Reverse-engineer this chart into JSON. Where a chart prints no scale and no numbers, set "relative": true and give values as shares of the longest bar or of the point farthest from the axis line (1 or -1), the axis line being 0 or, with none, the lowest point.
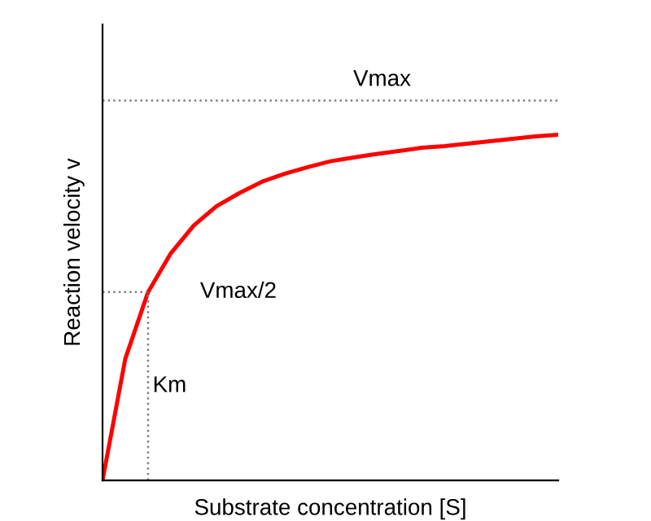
{
  "chart_data": {
    "type": "line",
    "relative": true,
    "xlabel": "Substrate concentration [S]",
    "ylabel": "Reaction velocity v",
    "categories": [
      null,
      null,
      null,
      null,
      null,
      null,
      null,
      null,
      null,
      null,
      null,
      null,
      null,
      null,
      null,
      null,
      null,
      null,
      null,
      null,
      null
    ],
    "series": [
      {
        "color": "#ff0000",
        "line_style": "solid",
        "values": [
          0,
          0.352,
          0.545,
          0.657,
          0.737,
          0.793,
          0.831,
          0.864,
          0.887,
          0.906,
          0.923,
          0.934,
          0.944,
          0.953,
          0.962,
          0.967,
          0.974,
          0.981,
          0.988,
          0.995,
          1.0
        ]
      },
      {
        "color": "#808080",
        "line_style": "dotted",
        "values": [
          0.545,
          0.545,
          0.545,
          null,
          null,
          null,
          null,
          null,
          null,
          null,
          null,
          null,
          null,
          null,
          null,
          null,
          null,
          null,
          null,
          null,
          null
        ]
      }
    ],
    "ref_lines": [
      {
        "axis": "y",
        "value": 1.099,
        "color": "#808080",
        "line_style": "dotted"
      }
    ],
    "annotations": [
      "Vmax",
      "Vmax/2",
      "Km"
    ]
  }
}
